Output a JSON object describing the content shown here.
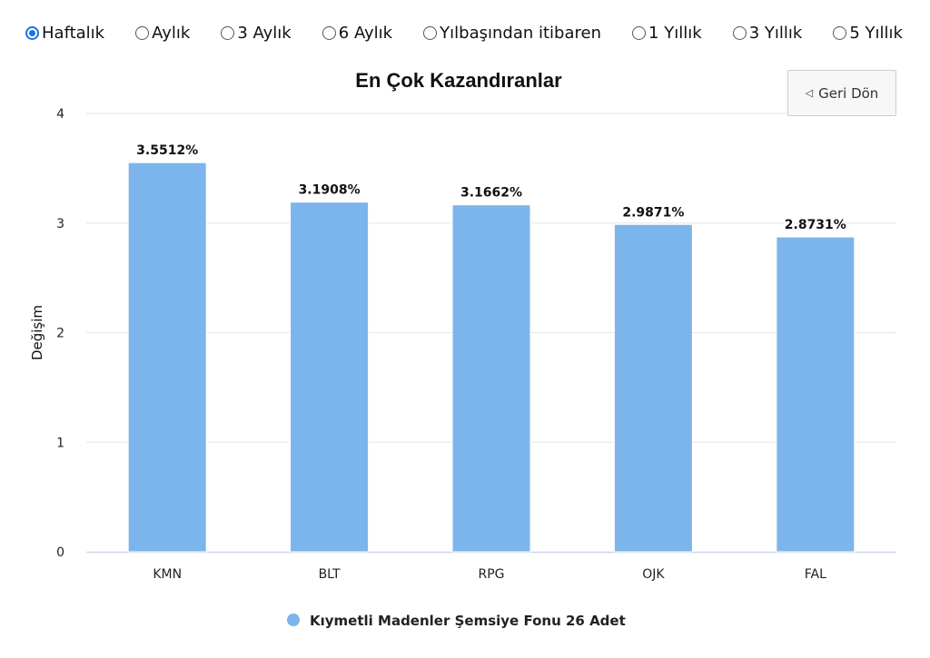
{
  "periods": [
    {
      "label": "Haftalık",
      "checked": true
    },
    {
      "label": "Aylık",
      "checked": false
    },
    {
      "label": "3 Aylık",
      "checked": false
    },
    {
      "label": "6 Aylık",
      "checked": false
    },
    {
      "label": "Yılbaşından itibaren",
      "checked": false
    },
    {
      "label": "1 Yıllık",
      "checked": false
    },
    {
      "label": "3 Yıllık",
      "checked": false
    },
    {
      "label": "5 Yıllık",
      "checked": false
    }
  ],
  "back_button": {
    "icon": "triangle-left-icon",
    "label": "Geri Dön"
  },
  "chart_data": {
    "type": "bar",
    "title": "En Çok Kazandıranlar",
    "xlabel": "",
    "ylabel": "Değişim",
    "ylim": [
      0,
      4
    ],
    "yticks": [
      0,
      1,
      2,
      3,
      4
    ],
    "categories": [
      "KMN",
      "BLT",
      "RPG",
      "OJK",
      "FAL"
    ],
    "series": [
      {
        "name": "Kıymetli Madenler Şemsiye Fonu 26 Adet",
        "values": [
          3.5512,
          3.1908,
          3.1662,
          2.9871,
          2.8731
        ],
        "labels": [
          "3.5512%",
          "3.1908%",
          "3.1662%",
          "2.9871%",
          "2.8731%"
        ],
        "color": "#7cb5ec"
      }
    ],
    "grid": true,
    "legend": "bottom-center"
  }
}
